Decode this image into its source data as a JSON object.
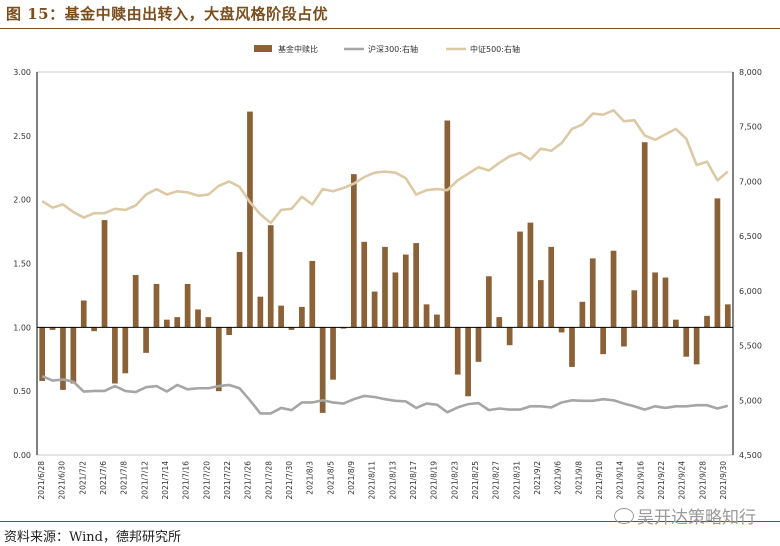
{
  "title": "图 15：基金中赎由出转入，大盘风格阶段占优",
  "source": "资料来源：Wind，德邦研究所",
  "watermark": "吴开达策略知行",
  "colors": {
    "bar": "#8b6238",
    "hs300": "#a6a6a6",
    "zz500": "#dcc9a6",
    "axis": "#000000"
  },
  "chart_data": {
    "type": "bar+line",
    "legend": [
      "基金中赎比",
      "沪深300:右轴",
      "中证500:右轴"
    ],
    "legend_position": "top",
    "y_left": {
      "min": 0,
      "max": 3,
      "ticks": [
        "0.00",
        "0.50",
        "1.00",
        "1.50",
        "2.00",
        "2.50",
        "3.00"
      ],
      "baseline": 1.0
    },
    "y_right": {
      "min": 4500,
      "max": 8000,
      "ticks": [
        "4,500",
        "5,000",
        "5,500",
        "6,000",
        "6,500",
        "7,000",
        "7,500",
        "8,000"
      ]
    },
    "x_tick_labels": [
      "2021/6/28",
      "2021/6/30",
      "2021/7/2",
      "2021/7/6",
      "2021/7/8",
      "2021/7/12",
      "2021/7/14",
      "2021/7/16",
      "2021/7/20",
      "2021/7/22",
      "2021/7/26",
      "2021/7/28",
      "2021/7/30",
      "2021/8/3",
      "2021/8/5",
      "2021/8/9",
      "2021/8/11",
      "2021/8/13",
      "2021/8/17",
      "2021/8/19",
      "2021/8/23",
      "2021/8/25",
      "2021/8/27",
      "2021/8/31",
      "2021/9/2",
      "2021/9/6",
      "2021/9/8",
      "2021/9/10",
      "2021/9/14",
      "2021/9/16",
      "2021/9/22",
      "2021/9/24",
      "2021/9/28",
      "2021/9/30"
    ],
    "series": [
      {
        "name": "基金中赎比",
        "type": "bar",
        "axis": "left",
        "values": [
          0.58,
          0.98,
          0.51,
          0.56,
          1.21,
          0.97,
          1.84,
          0.56,
          0.64,
          1.41,
          0.8,
          1.34,
          1.06,
          1.08,
          1.34,
          1.14,
          1.08,
          0.5,
          0.94,
          1.59,
          2.69,
          1.24,
          1.8,
          1.17,
          0.98,
          1.16,
          1.52,
          0.33,
          0.59,
          0.99,
          2.2,
          1.67,
          1.28,
          1.63,
          1.43,
          1.57,
          1.66,
          1.18,
          1.1,
          2.62,
          0.63,
          0.46,
          0.73,
          1.4,
          1.08,
          0.86,
          1.75,
          1.82,
          1.37,
          1.63,
          0.96,
          0.69,
          1.2,
          1.54,
          0.79,
          1.6,
          0.85,
          1.29,
          2.45,
          1.43,
          1.39,
          1.06,
          0.77,
          0.71,
          1.09,
          2.01,
          1.18
        ]
      },
      {
        "name": "沪深300:右轴",
        "type": "line",
        "axis": "right",
        "values": [
          5220,
          5180,
          5190,
          5170,
          5080,
          5085,
          5085,
          5130,
          5085,
          5075,
          5120,
          5130,
          5080,
          5140,
          5100,
          5110,
          5110,
          5130,
          5140,
          5110,
          5000,
          4880,
          4880,
          4930,
          4910,
          4980,
          4980,
          5000,
          4980,
          4970,
          5010,
          5040,
          5030,
          5010,
          4995,
          4990,
          4930,
          4970,
          4960,
          4890,
          4935,
          4965,
          4975,
          4910,
          4925,
          4915,
          4915,
          4945,
          4945,
          4935,
          4980,
          5000,
          4995,
          4995,
          5010,
          5000,
          4970,
          4945,
          4915,
          4945,
          4930,
          4945,
          4945,
          4955,
          4955,
          4925,
          4950
        ]
      },
      {
        "name": "中证500:右轴",
        "type": "line",
        "axis": "right",
        "values": [
          6820,
          6760,
          6790,
          6720,
          6670,
          6710,
          6710,
          6750,
          6740,
          6780,
          6880,
          6930,
          6880,
          6910,
          6900,
          6870,
          6880,
          6960,
          7000,
          6950,
          6810,
          6700,
          6620,
          6740,
          6750,
          6860,
          6790,
          6930,
          6910,
          6940,
          6980,
          7040,
          7080,
          7090,
          7080,
          7030,
          6880,
          6920,
          6930,
          6920,
          7010,
          7070,
          7130,
          7100,
          7170,
          7230,
          7260,
          7200,
          7300,
          7280,
          7350,
          7480,
          7520,
          7620,
          7610,
          7650,
          7550,
          7560,
          7420,
          7380,
          7430,
          7480,
          7390,
          7150,
          7180,
          7010,
          7090
        ]
      }
    ]
  }
}
